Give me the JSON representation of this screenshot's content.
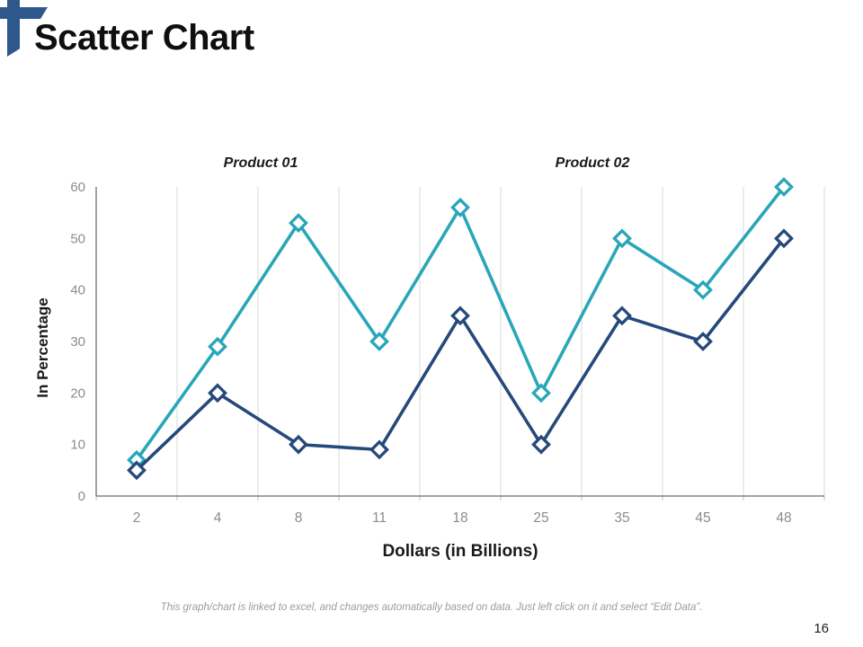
{
  "slide": {
    "title": "Scatter Chart",
    "page_number": "16",
    "footer_note": "This graph/chart is linked to excel, and changes automatically based on data. Just left click on it and select “Edit Data”.",
    "accent_color": "#2E578C"
  },
  "chart_data": {
    "type": "line",
    "x_categories": [
      "2",
      "4",
      "8",
      "11",
      "18",
      "25",
      "35",
      "45",
      "48"
    ],
    "series": [
      {
        "name": "Product 01",
        "color": "#29A6B8",
        "values": [
          7,
          29,
          53,
          30,
          56,
          20,
          50,
          40,
          60
        ]
      },
      {
        "name": "Product 02",
        "color": "#25497A",
        "values": [
          5,
          20,
          10,
          9,
          35,
          10,
          35,
          30,
          50
        ]
      }
    ],
    "title": "",
    "xlabel": "Dollars (in Billions)",
    "ylabel": "In Percentage",
    "ylim": [
      0,
      60
    ],
    "yticks": [
      0,
      10,
      20,
      30,
      40,
      50,
      60
    ],
    "grid": "vertical-only",
    "marker": "diamond-open",
    "legend_position": "top",
    "gridline_color": "#D9D9D9",
    "axis_color": "#6E6E6E",
    "tick_color": "#BFBFBF",
    "tick_label_color": "#8C8C8C"
  }
}
